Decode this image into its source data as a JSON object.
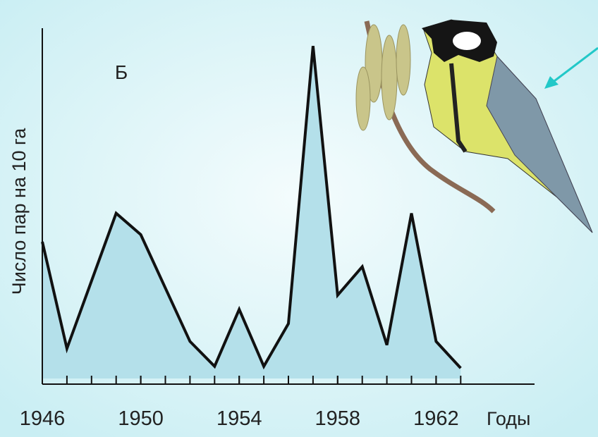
{
  "chart_data": {
    "type": "area",
    "annotation": "Б",
    "y_label": "Число пар на 10 га",
    "x_label": "Годы",
    "x": [
      1946,
      1947,
      1948,
      1949,
      1950,
      1951,
      1952,
      1953,
      1954,
      1955,
      1956,
      1957,
      1958,
      1959,
      1960,
      1961,
      1962,
      1963
    ],
    "values": [
      40,
      10,
      29,
      48,
      42,
      27,
      12,
      5,
      21,
      5,
      17,
      95,
      25,
      33,
      11,
      48,
      12,
      4.5
    ],
    "color": "#b4e0ea",
    "line_color": "#111111",
    "xlim": [
      1946,
      1966
    ],
    "xticks": [
      1946,
      1950,
      1954,
      1958,
      1962
    ],
    "ylim": [
      0,
      100
    ]
  }
}
